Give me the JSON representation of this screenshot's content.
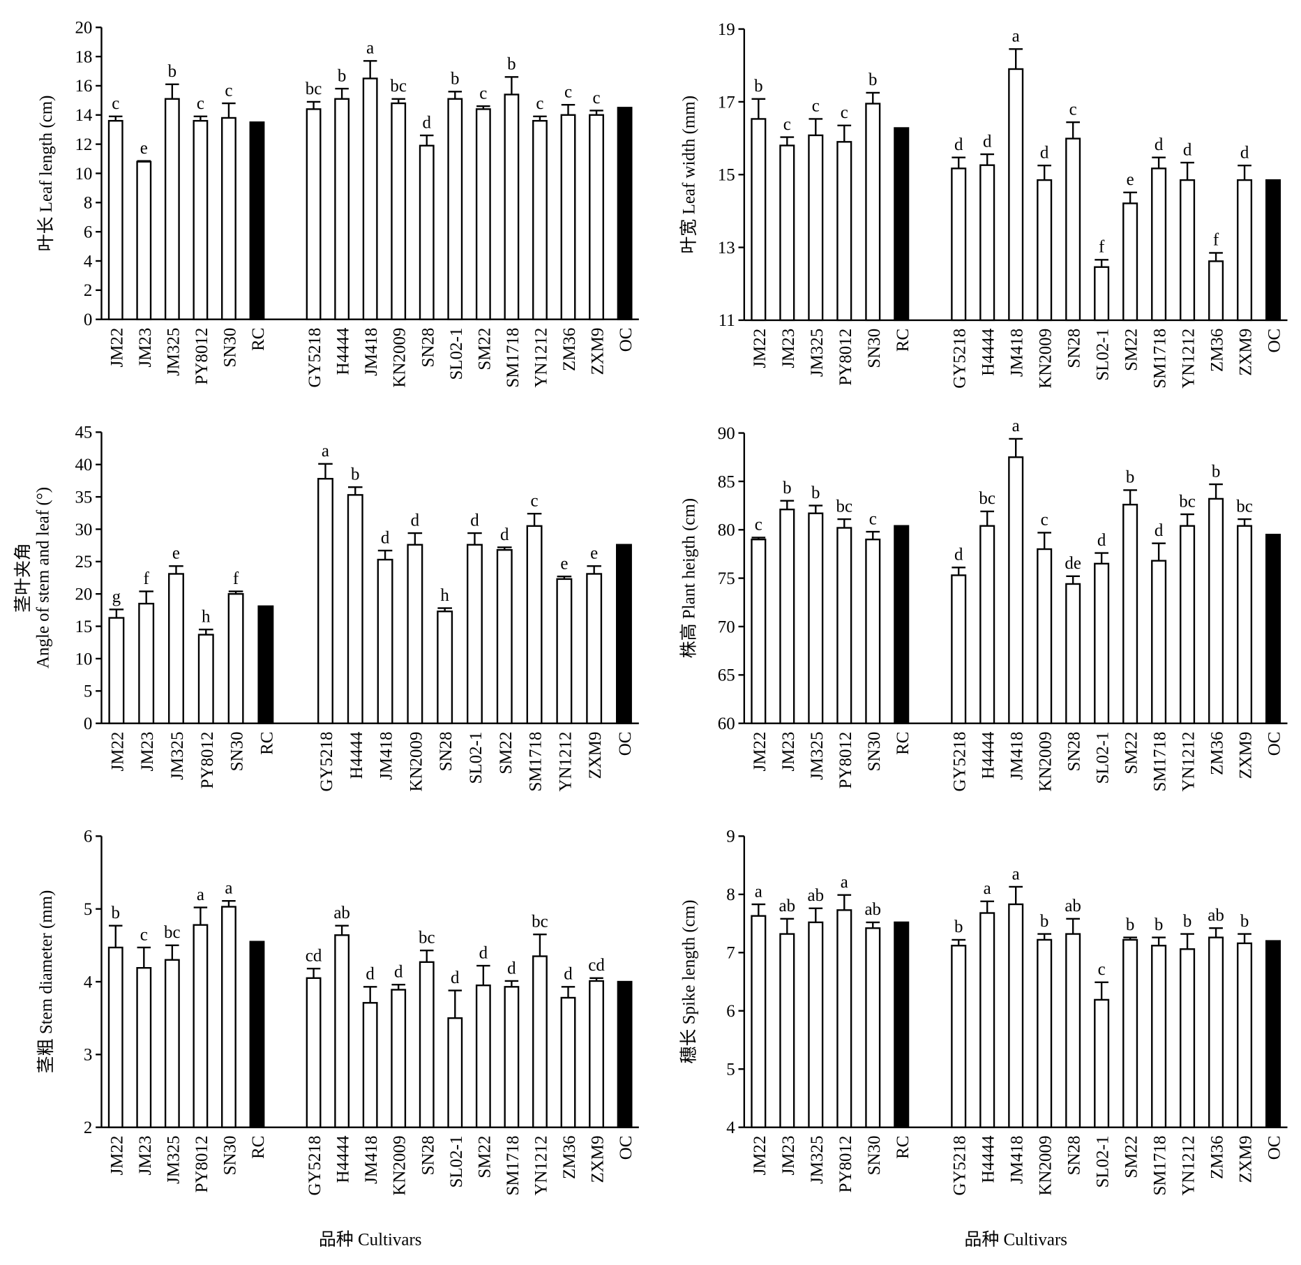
{
  "chart_data": [
    {
      "type": "bar",
      "ylabel": "叶长 Leaf length (cm)",
      "categories": [
        "JM22",
        "JM23",
        "JM325",
        "PY8012",
        "SN30",
        "RC",
        "GY5218",
        "H4444",
        "JM418",
        "KN2009",
        "SN28",
        "SL02-1",
        "SM22",
        "SM1718",
        "YN1212",
        "ZM36",
        "ZXM9",
        "OC"
      ],
      "values": [
        13.6,
        10.8,
        15.1,
        13.6,
        13.8,
        13.5,
        14.4,
        15.1,
        16.5,
        14.8,
        11.9,
        15.1,
        14.4,
        15.4,
        13.6,
        14.0,
        14.0,
        14.5
      ],
      "errors": [
        0.3,
        0.05,
        1.0,
        0.3,
        1.0,
        null,
        0.5,
        0.7,
        1.2,
        0.3,
        0.7,
        0.5,
        0.2,
        1.2,
        0.3,
        0.7,
        0.3,
        null
      ],
      "letters": [
        "c",
        "e",
        "b",
        "c",
        "c",
        null,
        "bc",
        "b",
        "a",
        "bc",
        "d",
        "b",
        "c",
        "b",
        "c",
        "c",
        "c",
        null
      ],
      "colors": [
        "#ffffff",
        "#ffffff",
        "#ffffff",
        "#ffffff",
        "#ffffff",
        "#000000",
        "#ffffff",
        "#ffffff",
        "#ffffff",
        "#ffffff",
        "#ffffff",
        "#ffffff",
        "#ffffff",
        "#ffffff",
        "#ffffff",
        "#ffffff",
        "#ffffff",
        "#000000"
      ],
      "edge_color": "#000000",
      "ylim": [
        0,
        20
      ],
      "yticks": [
        0,
        2,
        4,
        6,
        8,
        10,
        12,
        14,
        16,
        18,
        20
      ]
    },
    {
      "type": "bar",
      "ylabel": "叶宽 Leaf width (mm)",
      "categories": [
        "JM22",
        "JM23",
        "JM325",
        "PY8012",
        "SN30",
        "RC",
        "GY5218",
        "H4444",
        "JM418",
        "KN2009",
        "SN28",
        "SL02-1",
        "SM22",
        "SM1718",
        "YN1212",
        "ZM36",
        "ZXM9",
        "OC"
      ],
      "values": [
        16.53,
        15.8,
        16.08,
        15.9,
        16.95,
        16.28,
        15.17,
        15.26,
        17.9,
        14.85,
        15.99,
        12.46,
        14.21,
        15.17,
        14.85,
        12.62,
        14.85,
        14.85
      ],
      "errors": [
        0.55,
        0.23,
        0.45,
        0.45,
        0.3,
        null,
        0.3,
        0.3,
        0.55,
        0.4,
        0.45,
        0.2,
        0.3,
        0.3,
        0.48,
        0.23,
        0.4,
        null
      ],
      "letters": [
        "b",
        "c",
        "c",
        "c",
        "b",
        null,
        "d",
        "d",
        "a",
        "d",
        "c",
        "f",
        "e",
        "d",
        "d",
        "f",
        "d",
        null
      ],
      "colors": [
        "#ffffff",
        "#ffffff",
        "#ffffff",
        "#ffffff",
        "#ffffff",
        "#000000",
        "#ffffff",
        "#ffffff",
        "#ffffff",
        "#ffffff",
        "#ffffff",
        "#ffffff",
        "#ffffff",
        "#ffffff",
        "#ffffff",
        "#ffffff",
        "#ffffff",
        "#000000"
      ],
      "edge_color": "#000000",
      "ylim": [
        11,
        19
      ],
      "yticks": [
        11,
        13,
        15,
        17,
        19
      ]
    },
    {
      "type": "bar",
      "ylabel": [
        "茎叶夹角",
        "Angle of stem and leaf (°)"
      ],
      "categories": [
        "JM22",
        "JM23",
        "JM325",
        "PY8012",
        "SN30",
        "RC",
        "GY5218",
        "H4444",
        "JM418",
        "KN2009",
        "SN28",
        "SL02-1",
        "SM22",
        "SM1718",
        "YN1212",
        "ZXM9",
        "OC"
      ],
      "values": [
        16.3,
        18.5,
        23.1,
        13.7,
        20.0,
        18.1,
        37.8,
        35.3,
        25.3,
        27.6,
        17.3,
        27.6,
        26.8,
        30.5,
        22.3,
        23.1,
        27.6
      ],
      "errors": [
        1.3,
        1.9,
        1.2,
        0.8,
        0.4,
        null,
        2.3,
        1.2,
        1.4,
        1.8,
        0.5,
        1.8,
        0.4,
        1.9,
        0.4,
        1.2,
        null
      ],
      "letters": [
        "g",
        "f",
        "e",
        "h",
        "f",
        null,
        "a",
        "b",
        "d",
        "d",
        "h",
        "d",
        "d",
        "c",
        "e",
        "e",
        null
      ],
      "colors": [
        "#ffffff",
        "#ffffff",
        "#ffffff",
        "#ffffff",
        "#ffffff",
        "#000000",
        "#ffffff",
        "#ffffff",
        "#ffffff",
        "#ffffff",
        "#ffffff",
        "#ffffff",
        "#ffffff",
        "#ffffff",
        "#ffffff",
        "#ffffff",
        "#000000"
      ],
      "edge_color": "#000000",
      "ylim": [
        0,
        45
      ],
      "yticks": [
        0,
        5,
        10,
        15,
        20,
        25,
        30,
        35,
        40,
        45
      ]
    },
    {
      "type": "bar",
      "ylabel": "株高 Plant heigth (cm)",
      "categories": [
        "JM22",
        "JM23",
        "JM325",
        "PY8012",
        "SN30",
        "RC",
        "GY5218",
        "H4444",
        "JM418",
        "KN2009",
        "SN28",
        "SL02-1",
        "SM22",
        "SM1718",
        "YN1212",
        "ZM36",
        "ZXM9",
        "OC"
      ],
      "values": [
        79.0,
        82.1,
        81.7,
        80.2,
        79.0,
        80.4,
        75.3,
        80.4,
        87.5,
        78.0,
        74.4,
        76.5,
        82.6,
        76.8,
        80.4,
        83.2,
        80.4,
        79.5
      ],
      "errors": [
        0.2,
        0.9,
        0.8,
        0.9,
        0.8,
        null,
        0.8,
        1.5,
        1.9,
        1.7,
        0.8,
        1.1,
        1.5,
        1.8,
        1.2,
        1.5,
        0.7,
        null
      ],
      "letters": [
        "c",
        "b",
        "b",
        "bc",
        "c",
        null,
        "d",
        "bc",
        "a",
        "c",
        "de",
        "d",
        "b",
        "d",
        "bc",
        "b",
        "bc",
        null
      ],
      "colors": [
        "#ffffff",
        "#ffffff",
        "#ffffff",
        "#ffffff",
        "#ffffff",
        "#000000",
        "#ffffff",
        "#ffffff",
        "#ffffff",
        "#ffffff",
        "#ffffff",
        "#ffffff",
        "#ffffff",
        "#ffffff",
        "#ffffff",
        "#ffffff",
        "#ffffff",
        "#000000"
      ],
      "edge_color": "#000000",
      "ylim": [
        60,
        90
      ],
      "yticks": [
        60,
        65,
        70,
        75,
        80,
        85,
        90
      ]
    },
    {
      "type": "bar",
      "ylabel": "茎粗 Stem diameter (mm)",
      "xlabel": "品种 Cultivars",
      "categories": [
        "JM22",
        "JM23",
        "JM325",
        "PY8012",
        "SN30",
        "RC",
        "GY5218",
        "H4444",
        "JM418",
        "KN2009",
        "SN28",
        "SL02-1",
        "SM22",
        "SM1718",
        "YN1212",
        "ZM36",
        "ZXM9",
        "OC"
      ],
      "values": [
        4.47,
        4.19,
        4.3,
        4.78,
        5.03,
        4.55,
        4.05,
        4.64,
        3.71,
        3.89,
        4.27,
        3.5,
        3.95,
        3.93,
        4.35,
        3.78,
        4.01,
        4.0
      ],
      "errors": [
        0.3,
        0.28,
        0.2,
        0.24,
        0.08,
        null,
        0.13,
        0.13,
        0.22,
        0.07,
        0.16,
        0.38,
        0.27,
        0.08,
        0.3,
        0.15,
        0.04,
        null
      ],
      "letters": [
        "b",
        "c",
        "bc",
        "a",
        "a",
        null,
        "cd",
        "ab",
        "d",
        "d",
        "bc",
        "d",
        "d",
        "d",
        "bc",
        "d",
        "cd",
        null
      ],
      "colors": [
        "#ffffff",
        "#ffffff",
        "#ffffff",
        "#ffffff",
        "#ffffff",
        "#000000",
        "#ffffff",
        "#ffffff",
        "#ffffff",
        "#ffffff",
        "#ffffff",
        "#ffffff",
        "#ffffff",
        "#ffffff",
        "#ffffff",
        "#ffffff",
        "#ffffff",
        "#000000"
      ],
      "edge_color": "#000000",
      "ylim": [
        2,
        6
      ],
      "yticks": [
        2,
        3,
        4,
        5,
        6
      ]
    },
    {
      "type": "bar",
      "ylabel": "穗长 Spike length (cm)",
      "xlabel": "品种 Cultivars",
      "categories": [
        "JM22",
        "JM23",
        "JM325",
        "PY8012",
        "SN30",
        "RC",
        "GY5218",
        "H4444",
        "JM418",
        "KN2009",
        "SN28",
        "SL02-1",
        "SM22",
        "SM1718",
        "YN1212",
        "ZM36",
        "ZXM9",
        "OC"
      ],
      "values": [
        7.63,
        7.32,
        7.52,
        7.73,
        7.42,
        7.52,
        7.12,
        7.68,
        7.83,
        7.22,
        7.32,
        6.19,
        7.22,
        7.12,
        7.06,
        7.26,
        7.16,
        7.2
      ],
      "errors": [
        0.2,
        0.26,
        0.24,
        0.26,
        0.1,
        null,
        0.1,
        0.2,
        0.3,
        0.1,
        0.26,
        0.3,
        0.04,
        0.14,
        0.26,
        0.16,
        0.16,
        null
      ],
      "letters": [
        "a",
        "ab",
        "ab",
        "a",
        "ab",
        null,
        "b",
        "a",
        "a",
        "b",
        "ab",
        "c",
        "b",
        "b",
        "b",
        "ab",
        "b",
        null
      ],
      "colors": [
        "#ffffff",
        "#ffffff",
        "#ffffff",
        "#ffffff",
        "#ffffff",
        "#000000",
        "#ffffff",
        "#ffffff",
        "#ffffff",
        "#ffffff",
        "#ffffff",
        "#ffffff",
        "#ffffff",
        "#ffffff",
        "#ffffff",
        "#ffffff",
        "#ffffff",
        "#000000"
      ],
      "edge_color": "#000000",
      "ylim": [
        4,
        9
      ],
      "yticks": [
        4,
        5,
        6,
        7,
        8,
        9
      ]
    }
  ]
}
